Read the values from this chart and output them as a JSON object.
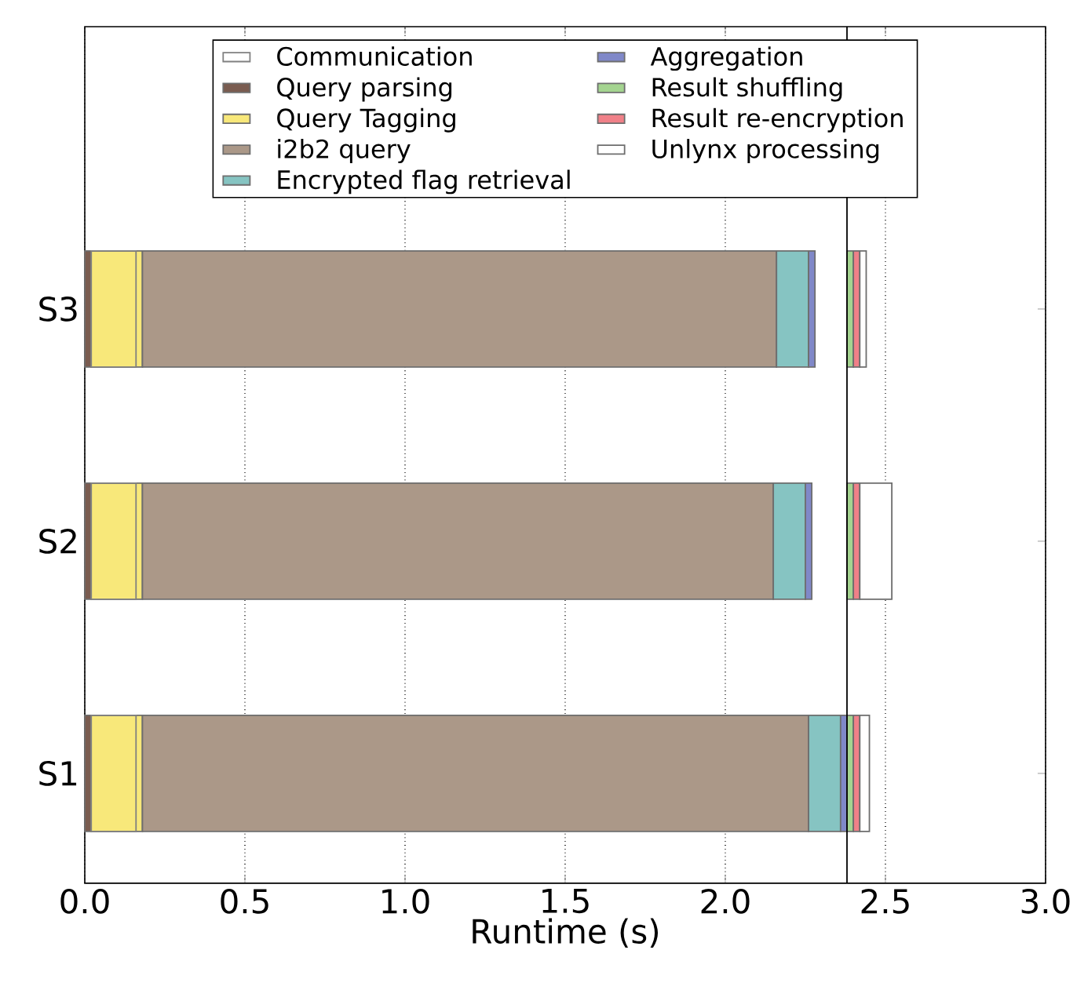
{
  "chart_data": {
    "type": "bar",
    "orientation": "horizontal",
    "xlabel": "Runtime (s)",
    "categories": [
      "S3",
      "S2",
      "S1"
    ],
    "series": [
      {
        "name": "Communication",
        "color": "#808080",
        "base": [
          0.02,
          0.02,
          0.02
        ],
        "values": [
          0.14,
          0.14,
          0.14
        ]
      },
      {
        "name": "Query parsing",
        "color": "#7a5c50",
        "base": [
          0,
          0,
          0
        ],
        "values": [
          0.02,
          0.02,
          0.02
        ]
      },
      {
        "name": "Query Tagging",
        "color": "#f8e87a",
        "base": [
          0.02,
          0.02,
          0.02
        ],
        "values": [
          0.16,
          0.16,
          0.16
        ]
      },
      {
        "name": "i2b2 query",
        "color": "#ab9888",
        "base": [
          0.18,
          0.18,
          0.18
        ],
        "values": [
          1.98,
          1.97,
          2.08
        ]
      },
      {
        "name": "Encrypted flag retrieval",
        "color": "#86c4c2",
        "base": [
          2.16,
          2.15,
          2.26
        ],
        "values": [
          0.1,
          0.1,
          0.1
        ]
      },
      {
        "name": "Aggregation",
        "color": "#8088c8",
        "base": [
          2.26,
          2.25,
          2.36
        ],
        "values": [
          0.02,
          0.02,
          0.02
        ]
      },
      {
        "name": "Result shuffling",
        "color": "#a4d490",
        "base": [
          2.38,
          2.38,
          2.38
        ],
        "values": [
          0.02,
          0.02,
          0.02
        ]
      },
      {
        "name": "Result re-encryption",
        "color": "#f08088",
        "base": [
          2.4,
          2.4,
          2.4
        ],
        "values": [
          0.02,
          0.02,
          0.02
        ]
      },
      {
        "name": "Unlynx processing",
        "color": "#ffffff",
        "base": [
          2.42,
          2.42,
          2.42
        ],
        "values": [
          0.02,
          0.1,
          0.03
        ]
      }
    ],
    "xlim": [
      0,
      3
    ],
    "xticks": [
      {
        "value": 0,
        "label": "0.0"
      },
      {
        "value": 0.5,
        "label": "0.5"
      },
      {
        "value": 1,
        "label": "1.0"
      },
      {
        "value": 1.5,
        "label": "1.5"
      },
      {
        "value": 2,
        "label": "2.0"
      },
      {
        "value": 2.5,
        "label": "2.5"
      },
      {
        "value": 3,
        "label": "3.0"
      }
    ],
    "ref_lines": [
      {
        "axis": "x",
        "value": 2.38,
        "color": "#000000"
      }
    ],
    "grid": "x",
    "legend": "top"
  }
}
